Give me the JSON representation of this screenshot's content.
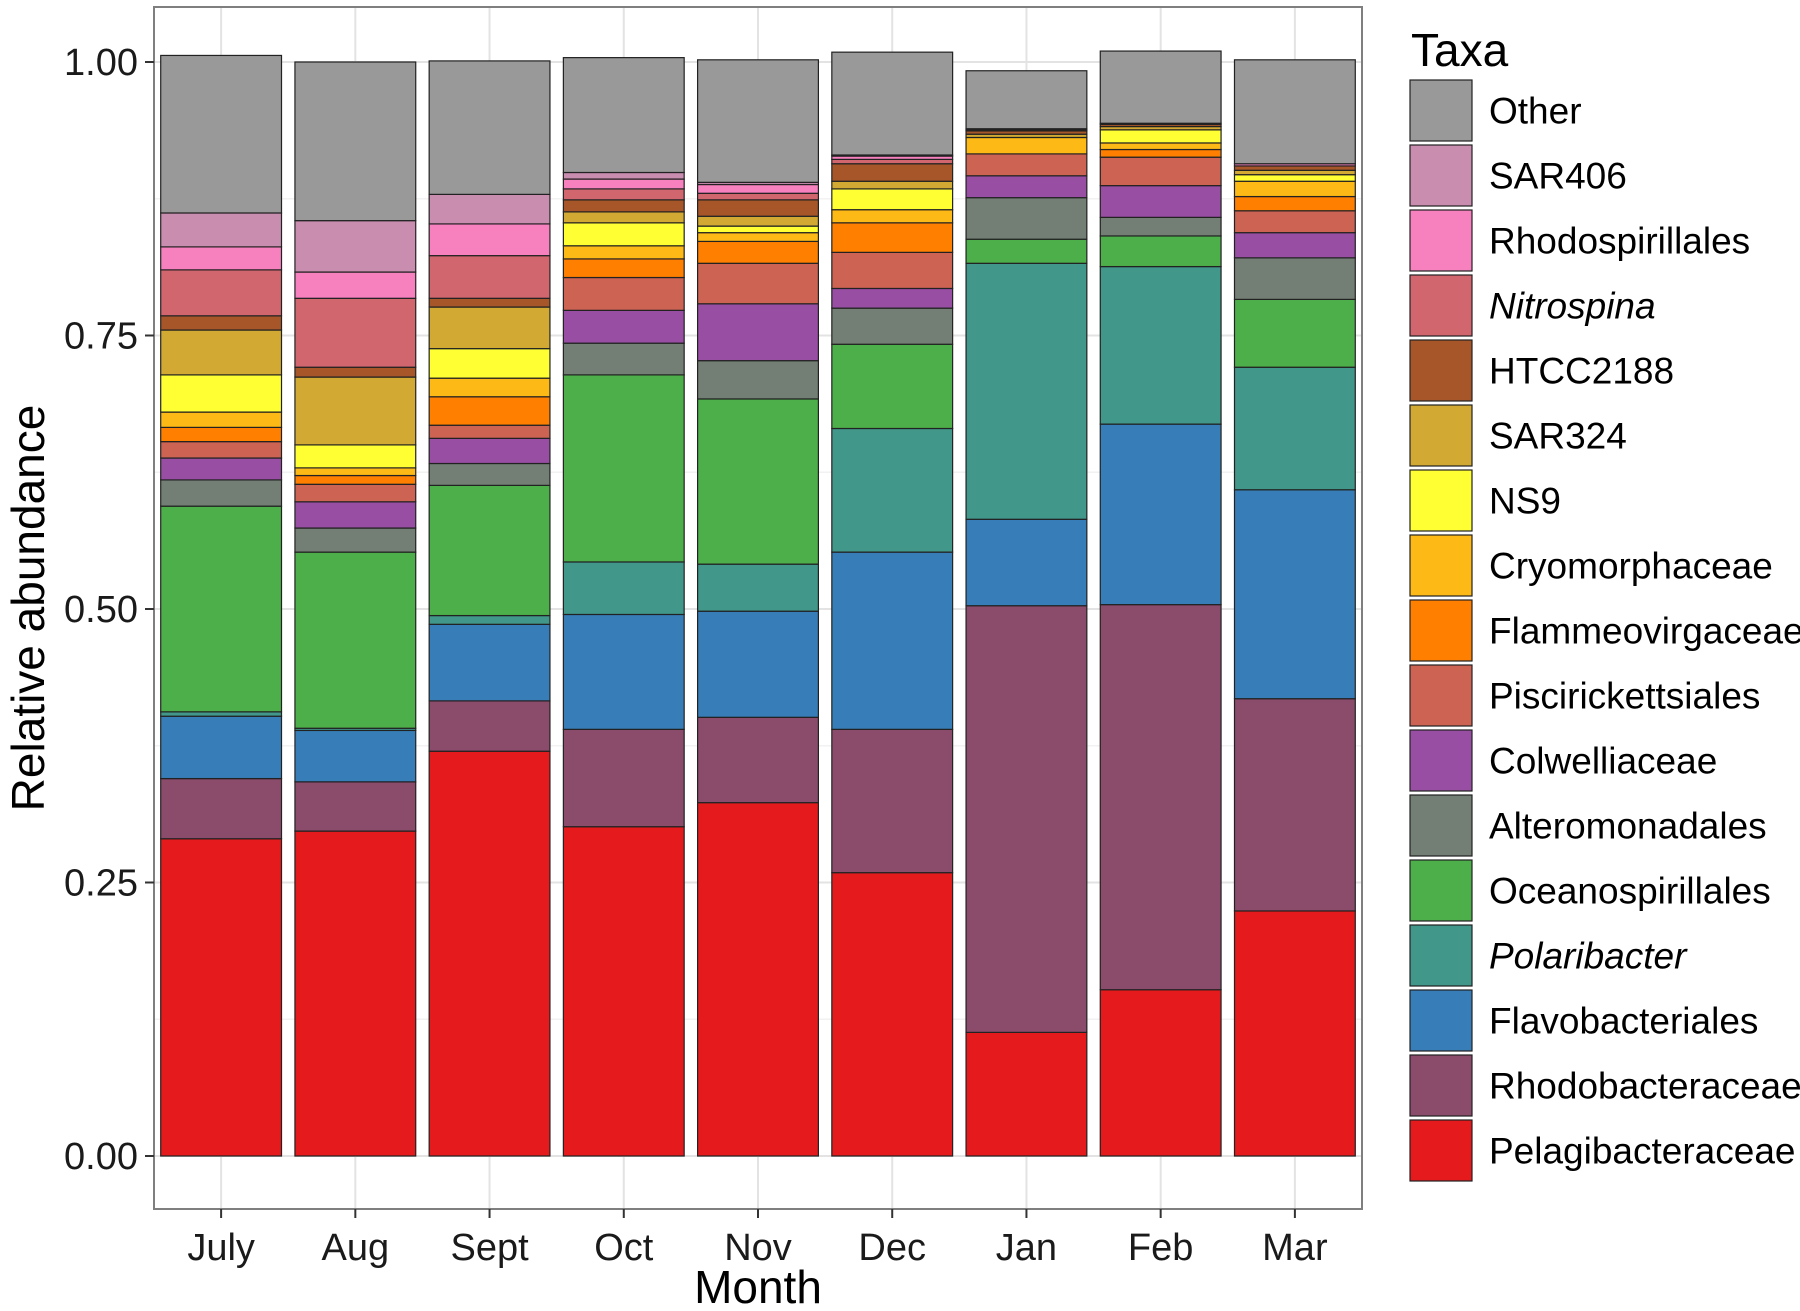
{
  "chart_data": {
    "type": "bar",
    "stacked": true,
    "title": "",
    "xlabel": "Month",
    "ylabel": "Relative abundance",
    "ylim": [
      -0.055,
      1.05
    ],
    "yticks": [
      0.0,
      0.25,
      0.5,
      0.75,
      1.0
    ],
    "ytick_labels": [
      "0.00",
      "0.25",
      "0.50",
      "0.75",
      "1.00"
    ],
    "grid": true,
    "legend_position": "right",
    "legend_title": "Taxa",
    "categories": [
      "July",
      "Aug",
      "Sept",
      "Oct",
      "Nov",
      "Dec",
      "Jan",
      "Feb",
      "Mar"
    ],
    "series": [
      {
        "name": "Pelagibacteraceae",
        "italic": false,
        "color": "#E41A1C",
        "values": [
          0.29,
          0.297,
          0.37,
          0.301,
          0.323,
          0.259,
          0.113,
          0.152,
          0.224
        ]
      },
      {
        "name": "Rhodobacteraceae",
        "italic": false,
        "color": "#8B4B6B",
        "values": [
          0.055,
          0.045,
          0.046,
          0.089,
          0.078,
          0.131,
          0.39,
          0.352,
          0.194
        ]
      },
      {
        "name": "Flavobacteriales",
        "italic": false,
        "color": "#377EB8",
        "values": [
          0.057,
          0.047,
          0.07,
          0.105,
          0.097,
          0.162,
          0.079,
          0.165,
          0.191
        ]
      },
      {
        "name": "Polaribacter",
        "italic": true,
        "color": "#41978A",
        "values": [
          0.004,
          0.002,
          0.008,
          0.048,
          0.043,
          0.113,
          0.234,
          0.144,
          0.112
        ]
      },
      {
        "name": "Oceanospirillales",
        "italic": false,
        "color": "#4DAF4A",
        "values": [
          0.188,
          0.161,
          0.119,
          0.171,
          0.151,
          0.077,
          0.022,
          0.028,
          0.062
        ]
      },
      {
        "name": "Alteromonadales",
        "italic": false,
        "color": "#737F74",
        "values": [
          0.024,
          0.022,
          0.02,
          0.029,
          0.035,
          0.033,
          0.038,
          0.017,
          0.038
        ]
      },
      {
        "name": "Colwelliaceae",
        "italic": false,
        "color": "#984EA3",
        "values": [
          0.02,
          0.024,
          0.023,
          0.03,
          0.052,
          0.018,
          0.02,
          0.029,
          0.023
        ]
      },
      {
        "name": "Piscirickettsiales",
        "italic": false,
        "color": "#CD6353",
        "values": [
          0.015,
          0.016,
          0.012,
          0.03,
          0.037,
          0.033,
          0.02,
          0.026,
          0.02
        ]
      },
      {
        "name": "Flammeovirgaceae",
        "italic": false,
        "color": "#FF7F00",
        "values": [
          0.013,
          0.008,
          0.026,
          0.017,
          0.02,
          0.027,
          0.0,
          0.007,
          0.013
        ]
      },
      {
        "name": "Cryomorphaceae",
        "italic": false,
        "color": "#FDB915",
        "values": [
          0.014,
          0.007,
          0.017,
          0.012,
          0.008,
          0.012,
          0.015,
          0.006,
          0.014
        ]
      },
      {
        "name": "NS9",
        "italic": false,
        "color": "#FFFF33",
        "values": [
          0.034,
          0.021,
          0.027,
          0.021,
          0.006,
          0.019,
          0.0,
          0.012,
          0.006
        ]
      },
      {
        "name": "SAR324",
        "italic": false,
        "color": "#D2A932",
        "values": [
          0.041,
          0.062,
          0.038,
          0.01,
          0.009,
          0.007,
          0.003,
          0.003,
          0.004
        ]
      },
      {
        "name": "HTCC2188",
        "italic": false,
        "color": "#A65628",
        "values": [
          0.013,
          0.009,
          0.008,
          0.011,
          0.015,
          0.016,
          0.003,
          0.002,
          0.004
        ]
      },
      {
        "name": "Nitrospina",
        "italic": true,
        "color": "#D1666F",
        "values": [
          0.042,
          0.063,
          0.039,
          0.01,
          0.006,
          0.004,
          0.0,
          0.0,
          0.0
        ]
      },
      {
        "name": "Rhodospirillales",
        "italic": false,
        "color": "#F781BF",
        "values": [
          0.021,
          0.024,
          0.029,
          0.009,
          0.008,
          0.003,
          0.001,
          0.001,
          0.002
        ]
      },
      {
        "name": "SAR406",
        "italic": false,
        "color": "#C98DAF",
        "values": [
          0.031,
          0.047,
          0.027,
          0.006,
          0.002,
          0.001,
          0.001,
          0.0,
          0.0
        ]
      },
      {
        "name": "Other",
        "italic": false,
        "color": "#999999",
        "values": [
          0.144,
          0.145,
          0.122,
          0.105,
          0.112,
          0.094,
          0.053,
          0.066,
          0.095
        ]
      }
    ]
  }
}
